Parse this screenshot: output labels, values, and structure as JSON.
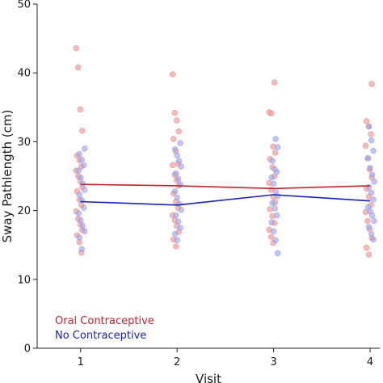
{
  "chart_data": {
    "type": "scatter",
    "xlabel": "Visit",
    "ylabel": "Sway Pathlength (cm)",
    "xlim": [
      0.55,
      4.1
    ],
    "ylim": [
      0,
      50
    ],
    "x_ticks": [
      1,
      2,
      3,
      4
    ],
    "y_ticks": [
      0,
      10,
      20,
      30,
      40,
      50
    ],
    "grid": false,
    "legend_position": "bottom-left",
    "series": [
      {
        "name": "Oral Contraceptive",
        "color": "#c0262b",
        "point_color": "#f08f8f",
        "mean_line": [
          {
            "x": 1,
            "y": 23.8
          },
          {
            "x": 2,
            "y": 23.6
          },
          {
            "x": 3,
            "y": 23.2
          },
          {
            "x": 4,
            "y": 23.6
          }
        ],
        "points": [
          {
            "x": 1,
            "y": 43.6
          },
          {
            "x": 1,
            "y": 40.8
          },
          {
            "x": 1,
            "y": 34.7
          },
          {
            "x": 1,
            "y": 31.6
          },
          {
            "x": 1,
            "y": 28.0
          },
          {
            "x": 1,
            "y": 27.3
          },
          {
            "x": 1,
            "y": 26.4
          },
          {
            "x": 1,
            "y": 25.8
          },
          {
            "x": 1,
            "y": 25.0
          },
          {
            "x": 1,
            "y": 24.3
          },
          {
            "x": 1,
            "y": 23.4
          },
          {
            "x": 1,
            "y": 22.8
          },
          {
            "x": 1,
            "y": 21.6
          },
          {
            "x": 1,
            "y": 20.8
          },
          {
            "x": 1,
            "y": 19.9
          },
          {
            "x": 1,
            "y": 18.8
          },
          {
            "x": 1,
            "y": 18.0
          },
          {
            "x": 1,
            "y": 17.2
          },
          {
            "x": 1,
            "y": 16.4
          },
          {
            "x": 1,
            "y": 15.4
          },
          {
            "x": 1,
            "y": 13.9
          },
          {
            "x": 2,
            "y": 39.8
          },
          {
            "x": 2,
            "y": 34.2
          },
          {
            "x": 2,
            "y": 33.1
          },
          {
            "x": 2,
            "y": 31.5
          },
          {
            "x": 2,
            "y": 30.4
          },
          {
            "x": 2,
            "y": 28.6
          },
          {
            "x": 2,
            "y": 26.8
          },
          {
            "x": 2,
            "y": 26.6
          },
          {
            "x": 2,
            "y": 25.2
          },
          {
            "x": 2,
            "y": 24.4
          },
          {
            "x": 2,
            "y": 23.6
          },
          {
            "x": 2,
            "y": 22.5
          },
          {
            "x": 2,
            "y": 21.3
          },
          {
            "x": 2,
            "y": 20.4
          },
          {
            "x": 2,
            "y": 19.3
          },
          {
            "x": 2,
            "y": 18.6
          },
          {
            "x": 2,
            "y": 17.8
          },
          {
            "x": 2,
            "y": 16.9
          },
          {
            "x": 2,
            "y": 15.8
          },
          {
            "x": 2,
            "y": 14.8
          },
          {
            "x": 3,
            "y": 38.6
          },
          {
            "x": 3,
            "y": 34.3
          },
          {
            "x": 3,
            "y": 34.1
          },
          {
            "x": 3,
            "y": 29.3
          },
          {
            "x": 3,
            "y": 28.4
          },
          {
            "x": 3,
            "y": 27.5
          },
          {
            "x": 3,
            "y": 26.3
          },
          {
            "x": 3,
            "y": 25.0
          },
          {
            "x": 3,
            "y": 24.0
          },
          {
            "x": 3,
            "y": 23.0
          },
          {
            "x": 3,
            "y": 22.0
          },
          {
            "x": 3,
            "y": 21.2
          },
          {
            "x": 3,
            "y": 20.2
          },
          {
            "x": 3,
            "y": 19.2
          },
          {
            "x": 3,
            "y": 18.2
          },
          {
            "x": 3,
            "y": 17.2
          },
          {
            "x": 3,
            "y": 16.2
          },
          {
            "x": 3,
            "y": 15.3
          },
          {
            "x": 4,
            "y": 38.4
          },
          {
            "x": 4,
            "y": 33.0
          },
          {
            "x": 4,
            "y": 32.2
          },
          {
            "x": 4,
            "y": 31.1
          },
          {
            "x": 4,
            "y": 29.4
          },
          {
            "x": 4,
            "y": 27.6
          },
          {
            "x": 4,
            "y": 26.0
          },
          {
            "x": 4,
            "y": 24.8
          },
          {
            "x": 4,
            "y": 23.2
          },
          {
            "x": 4,
            "y": 22.0
          },
          {
            "x": 4,
            "y": 20.8
          },
          {
            "x": 4,
            "y": 19.8
          },
          {
            "x": 4,
            "y": 18.5
          },
          {
            "x": 4,
            "y": 17.3
          },
          {
            "x": 4,
            "y": 16.0
          },
          {
            "x": 4,
            "y": 14.6
          },
          {
            "x": 4,
            "y": 13.6
          }
        ]
      },
      {
        "name": "No Contraceptive",
        "color": "#1a23b8",
        "point_color": "#9a9ff0",
        "mean_line": [
          {
            "x": 1,
            "y": 21.3
          },
          {
            "x": 2,
            "y": 20.8
          },
          {
            "x": 3,
            "y": 22.3
          },
          {
            "x": 4,
            "y": 21.4
          }
        ],
        "points": [
          {
            "x": 1,
            "y": 29.0
          },
          {
            "x": 1,
            "y": 28.2
          },
          {
            "x": 1,
            "y": 27.4
          },
          {
            "x": 1,
            "y": 26.6
          },
          {
            "x": 1,
            "y": 25.8
          },
          {
            "x": 1,
            "y": 24.8
          },
          {
            "x": 1,
            "y": 23.9
          },
          {
            "x": 1,
            "y": 23.0
          },
          {
            "x": 1,
            "y": 22.3
          },
          {
            "x": 1,
            "y": 21.5
          },
          {
            "x": 1,
            "y": 20.4
          },
          {
            "x": 1,
            "y": 19.6
          },
          {
            "x": 1,
            "y": 18.6
          },
          {
            "x": 1,
            "y": 17.8
          },
          {
            "x": 1,
            "y": 17.0
          },
          {
            "x": 1,
            "y": 16.1
          },
          {
            "x": 1,
            "y": 14.4
          },
          {
            "x": 2,
            "y": 29.8
          },
          {
            "x": 2,
            "y": 28.9
          },
          {
            "x": 2,
            "y": 28.0
          },
          {
            "x": 2,
            "y": 27.2
          },
          {
            "x": 2,
            "y": 26.4
          },
          {
            "x": 2,
            "y": 25.4
          },
          {
            "x": 2,
            "y": 24.6
          },
          {
            "x": 2,
            "y": 23.8
          },
          {
            "x": 2,
            "y": 22.8
          },
          {
            "x": 2,
            "y": 21.9
          },
          {
            "x": 2,
            "y": 21.0
          },
          {
            "x": 2,
            "y": 20.1
          },
          {
            "x": 2,
            "y": 19.3
          },
          {
            "x": 2,
            "y": 18.4
          },
          {
            "x": 2,
            "y": 17.5
          },
          {
            "x": 2,
            "y": 16.6
          },
          {
            "x": 2,
            "y": 15.7
          },
          {
            "x": 3,
            "y": 30.4
          },
          {
            "x": 3,
            "y": 29.2
          },
          {
            "x": 3,
            "y": 27.2
          },
          {
            "x": 3,
            "y": 26.0
          },
          {
            "x": 3,
            "y": 25.6
          },
          {
            "x": 3,
            "y": 24.8
          },
          {
            "x": 3,
            "y": 23.9
          },
          {
            "x": 3,
            "y": 22.8
          },
          {
            "x": 3,
            "y": 22.1
          },
          {
            "x": 3,
            "y": 21.1
          },
          {
            "x": 3,
            "y": 20.3
          },
          {
            "x": 3,
            "y": 19.3
          },
          {
            "x": 3,
            "y": 18.3
          },
          {
            "x": 3,
            "y": 17.0
          },
          {
            "x": 3,
            "y": 15.7
          },
          {
            "x": 3,
            "y": 13.8
          },
          {
            "x": 4,
            "y": 32.2
          },
          {
            "x": 4,
            "y": 30.2
          },
          {
            "x": 4,
            "y": 28.7
          },
          {
            "x": 4,
            "y": 27.6
          },
          {
            "x": 4,
            "y": 26.2
          },
          {
            "x": 4,
            "y": 25.2
          },
          {
            "x": 4,
            "y": 24.2
          },
          {
            "x": 4,
            "y": 23.4
          },
          {
            "x": 4,
            "y": 22.6
          },
          {
            "x": 4,
            "y": 21.6
          },
          {
            "x": 4,
            "y": 20.5
          },
          {
            "x": 4,
            "y": 19.9
          },
          {
            "x": 4,
            "y": 19.3
          },
          {
            "x": 4,
            "y": 18.5
          },
          {
            "x": 4,
            "y": 17.6
          },
          {
            "x": 4,
            "y": 16.6
          },
          {
            "x": 4,
            "y": 15.8
          }
        ]
      }
    ]
  }
}
